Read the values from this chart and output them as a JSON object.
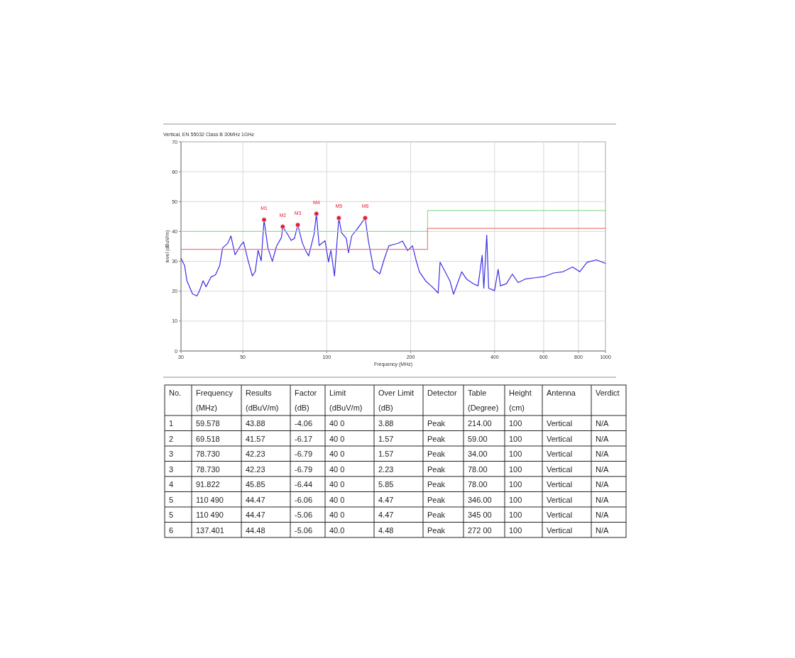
{
  "chart_data": [
    {
      "type": "line",
      "title": "Vertical, EN 55032 Class B 30MHz 1GHz",
      "xlabel": "Frequency (MHz)",
      "ylabel": "level (dBuV/m)",
      "log": "x",
      "grid": true,
      "xlim": [
        30,
        1000
      ],
      "ylim": [
        0,
        70
      ],
      "xticks": [
        30,
        50,
        100,
        200,
        400,
        600,
        800,
        1000
      ],
      "yticks": [
        0,
        10,
        20,
        30,
        40,
        50,
        60,
        70
      ],
      "series": [
        {
          "type": "line",
          "color": "#3b2ee6",
          "x": [
            30,
            30.9,
            31.5,
            33,
            34.2,
            35,
            36,
            36.9,
            38.4,
            39.9,
            41.3,
            42.3,
            44.2,
            45.3,
            46.9,
            49.1,
            50.3,
            52.1,
            54.1,
            55.4,
            56.7,
            58.2,
            59.578,
            61.5,
            63.8,
            66,
            68.8,
            69.518,
            72.2,
            74.5,
            76.6,
            78.73,
            81.8,
            83.9,
            86.1,
            90.1,
            91.822,
            93.9,
            98.6,
            101.5,
            103.5,
            106.6,
            110.49,
            113,
            117.5,
            119.7,
            122.9,
            128.5,
            137.401,
            141,
            147.3,
            155,
            160.6,
            167,
            173,
            180,
            187,
            195,
            203,
            209,
            215,
            227,
            237,
            251,
            255,
            266,
            277,
            285,
            305,
            317,
            336,
            349,
            361,
            366,
            375,
            381,
            400,
            412,
            420,
            441,
            463,
            486,
            516,
            558,
            604,
            651,
            704,
            762,
            808,
            859,
            928,
            1000
          ],
          "values": [
            31,
            28.6,
            23.5,
            19.1,
            18.4,
            20.3,
            23.5,
            21.5,
            24.7,
            25.5,
            28.6,
            34.5,
            36.1,
            38.5,
            32.2,
            35.3,
            36.5,
            30.6,
            25.1,
            26.6,
            33.7,
            30.2,
            43.9,
            34.5,
            30,
            35,
            38,
            41.6,
            39.2,
            37,
            37.7,
            42.2,
            36.1,
            33.7,
            31.8,
            39.2,
            45.9,
            35.3,
            36.9,
            29.8,
            33.7,
            25.1,
            44.5,
            39.6,
            37.7,
            32.9,
            38.5,
            40.8,
            44.5,
            36.9,
            27.4,
            25.8,
            30.6,
            35.2,
            35.6,
            36,
            36.8,
            33.6,
            35.2,
            30.5,
            26.5,
            23.3,
            21.8,
            19.4,
            29.7,
            26.5,
            23.3,
            19,
            26.5,
            24.1,
            22.5,
            21.8,
            32,
            21,
            38.8,
            21,
            20.2,
            27.3,
            21.8,
            22.5,
            25.7,
            22.9,
            24.1,
            24.5,
            24.9,
            26.1,
            26.5,
            28.1,
            26.5,
            29.7,
            30.5,
            29.3
          ]
        },
        {
          "type": "step",
          "color": "#8fe08f",
          "x": [
            30,
            230,
            1000
          ],
          "values": [
            40,
            47,
            47
          ]
        },
        {
          "type": "step",
          "color": "#f07a7a",
          "x": [
            30,
            230,
            1000
          ],
          "values": [
            34,
            41,
            41
          ]
        },
        {
          "type": "scatter",
          "color": "#e0203a",
          "marker": "circle",
          "x": [
            59.578,
            69.518,
            78.73,
            91.822,
            110.49,
            137.401
          ],
          "values": [
            43.9,
            41.6,
            42.2,
            45.9,
            44.5,
            44.5
          ]
        }
      ],
      "annotations": [
        {
          "text": "M1",
          "x": 59.578,
          "y": 43.9
        },
        {
          "text": "M2",
          "x": 69.518,
          "y": 41.6
        },
        {
          "text": "M3",
          "x": 78.73,
          "y": 42.2
        },
        {
          "text": "M4",
          "x": 91.822,
          "y": 45.9
        },
        {
          "text": "M5",
          "x": 110.49,
          "y": 44.5
        },
        {
          "text": "M6",
          "x": 137.401,
          "y": 44.5
        }
      ]
    },
    {
      "type": "other",
      "categories": [
        "No.",
        "Frequency (MHz)",
        "Results (dBuV/m)",
        "Factor (dB)",
        "Limit (dBuV/m)",
        "Over Limit (dB)",
        "Detector",
        "Table (Degree)",
        "Height (cm)",
        "Antenna",
        "Verdict"
      ],
      "annotations": [
        "1",
        "59.578",
        "43.88",
        "-4.06",
        "40 0",
        "3.88",
        "Peak",
        "214.00",
        "100",
        "Vertical",
        "N/A",
        "2",
        "69.518",
        "41.57",
        "-6.17",
        "40 0",
        "1.57",
        "Peak",
        "59.00",
        "100",
        "Vertical",
        "N/A",
        "3",
        "78.730",
        "42.23",
        "-6.79",
        "40 0",
        "1.57",
        "Peak",
        "34.00",
        "100",
        "Vertical",
        "N/A",
        "3",
        "78.730",
        "42.23",
        "-6.79",
        "40 0",
        "2.23",
        "Peak",
        "78.00",
        "100",
        "Vertical",
        "N/A",
        "4",
        "91.822",
        "45.85",
        "-6.44",
        "40 0",
        "5.85",
        "Peak",
        "78.00",
        "100",
        "Vertical",
        "N/A",
        "5",
        "110 490",
        "44.47",
        "-6.06",
        "40 0",
        "4.47",
        "Peak",
        "346.00",
        "100",
        "Vertical",
        "N/A",
        "5",
        "110 490",
        "44.47",
        "-5.06",
        "40 0",
        "4.47",
        "Peak",
        "345 00",
        "100",
        "Vertical",
        "N/A",
        "6",
        "137.401",
        "44.48",
        "-5.06",
        "40.0",
        "4.48",
        "Peak",
        "272 00",
        "100",
        "Vertical",
        "N/A"
      ]
    }
  ]
}
